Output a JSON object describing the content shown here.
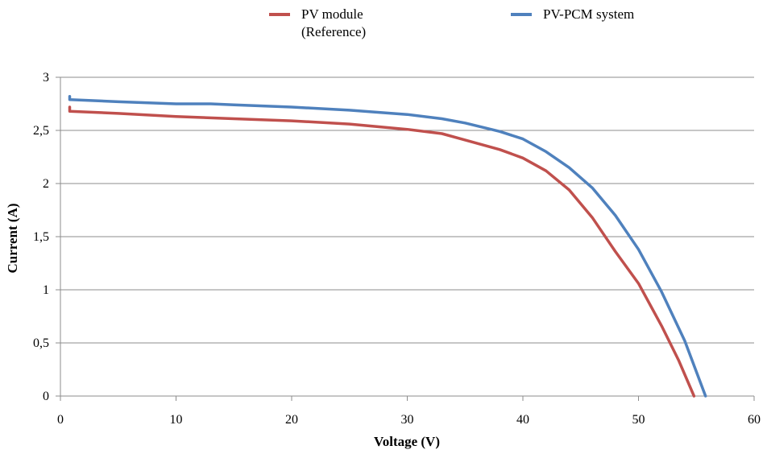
{
  "chart_data": {
    "type": "line",
    "xlabel": "Voltage (V)",
    "ylabel": "Current (A)",
    "xlim": [
      0,
      60
    ],
    "ylim": [
      0,
      3
    ],
    "x_ticks": [
      "0",
      "10",
      "20",
      "30",
      "40",
      "50",
      "60"
    ],
    "y_ticks": [
      "0",
      "0,5",
      "1",
      "1,5",
      "2",
      "2,5",
      "3"
    ],
    "grid": "horizontal",
    "legend_position": "top",
    "series": [
      {
        "name": "PV module\n(Reference)",
        "color": "#c0504d",
        "points": [
          [
            0.8,
            2.72
          ],
          [
            0.8,
            2.68
          ],
          [
            5,
            2.66
          ],
          [
            10,
            2.63
          ],
          [
            15,
            2.61
          ],
          [
            20,
            2.59
          ],
          [
            25,
            2.56
          ],
          [
            30,
            2.51
          ],
          [
            33,
            2.47
          ],
          [
            35,
            2.41
          ],
          [
            38,
            2.32
          ],
          [
            40,
            2.24
          ],
          [
            42,
            2.12
          ],
          [
            44,
            1.94
          ],
          [
            46,
            1.68
          ],
          [
            48,
            1.36
          ],
          [
            50,
            1.06
          ],
          [
            52,
            0.66
          ],
          [
            53.5,
            0.33
          ],
          [
            54.8,
            0.0
          ]
        ]
      },
      {
        "name": "PV-PCM system",
        "color": "#4f81bd",
        "points": [
          [
            0.8,
            2.82
          ],
          [
            0.8,
            2.79
          ],
          [
            5,
            2.77
          ],
          [
            10,
            2.75
          ],
          [
            13,
            2.75
          ],
          [
            15,
            2.74
          ],
          [
            20,
            2.72
          ],
          [
            25,
            2.69
          ],
          [
            30,
            2.65
          ],
          [
            33,
            2.61
          ],
          [
            35,
            2.57
          ],
          [
            38,
            2.49
          ],
          [
            40,
            2.42
          ],
          [
            42,
            2.3
          ],
          [
            44,
            2.15
          ],
          [
            46,
            1.96
          ],
          [
            48,
            1.7
          ],
          [
            50,
            1.38
          ],
          [
            52,
            0.98
          ],
          [
            54,
            0.52
          ],
          [
            55.8,
            0.0
          ]
        ]
      }
    ]
  }
}
